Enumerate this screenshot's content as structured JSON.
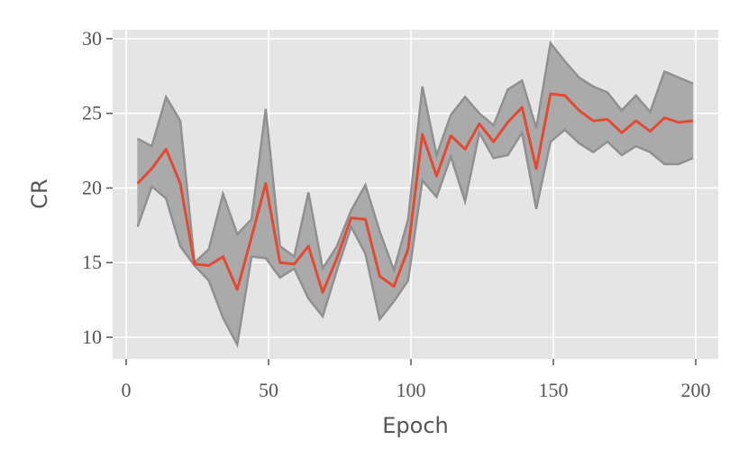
{
  "chart_data": {
    "type": "line",
    "xlabel": "Epoch",
    "ylabel": "CR",
    "x": [
      4,
      9,
      14,
      19,
      24,
      29,
      34,
      39,
      44,
      49,
      54,
      59,
      64,
      69,
      74,
      79,
      84,
      89,
      94,
      99,
      104,
      109,
      114,
      119,
      124,
      129,
      134,
      139,
      144,
      149,
      154,
      159,
      164,
      169,
      174,
      179,
      184,
      189,
      194,
      199
    ],
    "series": [
      {
        "color": "#e24a33",
        "values": [
          20.3,
          21.3,
          22.6,
          20.3,
          14.9,
          14.8,
          15.4,
          13.2,
          16.7,
          20.3,
          15.0,
          14.9,
          16.1,
          13.0,
          15.3,
          18.0,
          17.9,
          14.1,
          13.4,
          15.9,
          23.6,
          20.8,
          23.5,
          22.6,
          24.3,
          23.1,
          24.4,
          25.4,
          21.3,
          26.3,
          26.2,
          25.2,
          24.5,
          24.6,
          23.7,
          24.5,
          23.8,
          24.7,
          24.4,
          24.5
        ]
      }
    ],
    "band": {
      "color": "#aaaaaa",
      "edge_color": "#909090",
      "upper": [
        23.3,
        22.8,
        26.1,
        24.5,
        15.0,
        15.9,
        19.6,
        16.9,
        17.9,
        25.3,
        16.1,
        15.4,
        19.7,
        14.6,
        16.1,
        18.5,
        20.2,
        17.1,
        14.5,
        17.9,
        26.8,
        22.2,
        24.9,
        26.1,
        25.0,
        24.2,
        26.6,
        27.2,
        24.0,
        29.7,
        28.5,
        27.4,
        26.8,
        26.4,
        25.2,
        26.2,
        25.1,
        27.8,
        27.4,
        27.0
      ],
      "lower": [
        17.4,
        20.1,
        19.3,
        16.1,
        14.8,
        13.8,
        11.3,
        9.5,
        15.4,
        15.3,
        14.0,
        14.6,
        12.6,
        11.4,
        14.5,
        17.4,
        15.6,
        11.2,
        12.4,
        13.8,
        20.5,
        19.4,
        22.1,
        19.1,
        23.7,
        22.0,
        22.2,
        23.7,
        18.6,
        23.1,
        23.9,
        23.0,
        22.4,
        23.1,
        22.2,
        22.8,
        22.4,
        21.6,
        21.6,
        22.0
      ]
    },
    "xlim": [
      -4.75,
      207.9
    ],
    "ylim": [
      8.55,
      30.6
    ],
    "xticks": [
      0,
      50,
      100,
      150,
      200
    ],
    "yticks": [
      10,
      15,
      20,
      25,
      30
    ],
    "grid": true
  }
}
